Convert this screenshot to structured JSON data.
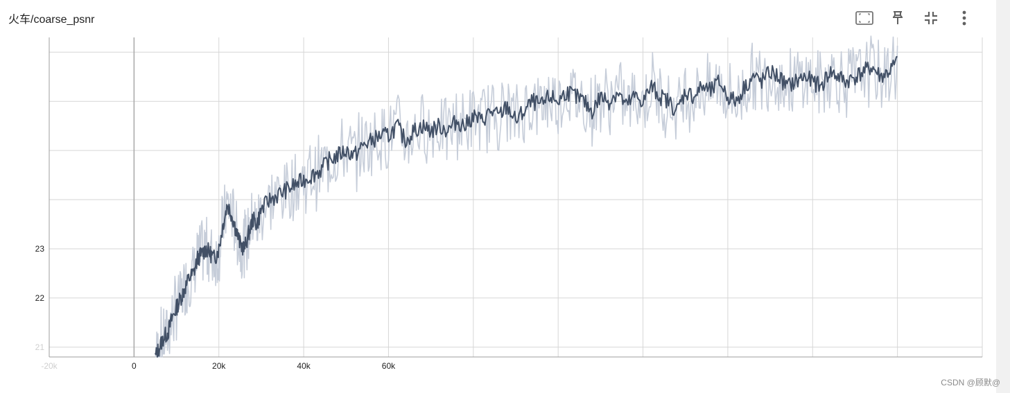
{
  "card": {
    "title": "火车/coarse_psnr"
  },
  "toolbar": [
    {
      "name": "fit-domain-button",
      "icon": "fit-to-screen-icon"
    },
    {
      "name": "pin-button",
      "icon": "pin-icon"
    },
    {
      "name": "collapse-button",
      "icon": "collapse-icon"
    },
    {
      "name": "more-options-button",
      "icon": "more-vert-icon"
    }
  ],
  "watermark": "CSDN @顾默@",
  "colors": {
    "smoothed": "#425066",
    "raw": "#c6cdd9",
    "grid": "#d6d6d6",
    "axis": "#9e9e9e",
    "zero_line": "#a8a8a8"
  },
  "chart_data": {
    "type": "line",
    "title": "火车/coarse_psnr",
    "xlabel": "",
    "ylabel": "",
    "xlim": [
      -20000,
      200000
    ],
    "ylim": [
      20.8,
      27.3
    ],
    "x_ticks": [
      {
        "value": -20000,
        "label": "-20k",
        "faded": true
      },
      {
        "value": 0,
        "label": "0"
      },
      {
        "value": 20000,
        "label": "20k"
      },
      {
        "value": 40000,
        "label": "40k"
      },
      {
        "value": 60000,
        "label": "60k"
      },
      {
        "value": 80000,
        "label": ""
      },
      {
        "value": 100000,
        "label": ""
      },
      {
        "value": 120000,
        "label": ""
      },
      {
        "value": 140000,
        "label": ""
      },
      {
        "value": 160000,
        "label": ""
      },
      {
        "value": 180000,
        "label": ""
      },
      {
        "value": 200000,
        "label": ""
      }
    ],
    "y_ticks": [
      {
        "value": 21,
        "label": "21",
        "faded": true
      },
      {
        "value": 22,
        "label": "22"
      },
      {
        "value": 23,
        "label": "23"
      },
      {
        "value": 24,
        "label": ""
      },
      {
        "value": 25,
        "label": ""
      },
      {
        "value": 26,
        "label": ""
      },
      {
        "value": 27,
        "label": ""
      }
    ],
    "grid": true,
    "series": [
      {
        "role": "smoothed",
        "x": [
          5000,
          6000,
          7000,
          8000,
          9000,
          10000,
          11000,
          12000,
          13000,
          14000,
          15000,
          16000,
          17000,
          18000,
          19000,
          20000,
          21000,
          22000,
          23000,
          24000,
          25000,
          26000,
          27000,
          28000,
          29000,
          30000,
          32000,
          34000,
          36000,
          38000,
          40000,
          42000,
          44000,
          46000,
          48000,
          50000,
          52000,
          54000,
          56000,
          58000,
          60000,
          62000,
          64000,
          66000,
          68000,
          70000,
          72000,
          74000,
          76000,
          78000,
          80000,
          82000,
          84000,
          86000,
          88000,
          90000,
          92000,
          94000,
          96000,
          98000,
          100000,
          102000,
          104000,
          106000,
          108000,
          110000,
          112000,
          114000,
          116000,
          118000,
          120000,
          122000,
          124000,
          126000,
          128000,
          130000,
          132000,
          134000,
          136000,
          138000,
          140000,
          142000,
          144000,
          146000,
          148000,
          150000,
          152000,
          154000,
          156000,
          158000,
          160000,
          162000,
          164000,
          166000,
          168000,
          170000,
          172000,
          174000,
          176000,
          178000,
          180000
        ],
        "y": [
          20.8,
          21.0,
          21.2,
          21.3,
          21.6,
          21.8,
          22.0,
          22.2,
          22.4,
          22.5,
          22.8,
          22.9,
          23.0,
          22.9,
          22.8,
          23.0,
          23.5,
          23.9,
          23.7,
          23.4,
          23.1,
          23.0,
          23.3,
          23.6,
          23.5,
          23.8,
          24.0,
          24.1,
          24.2,
          24.3,
          24.4,
          24.5,
          24.6,
          24.8,
          24.9,
          25.0,
          24.9,
          25.1,
          25.2,
          25.3,
          25.3,
          25.5,
          25.2,
          25.4,
          25.5,
          25.4,
          25.5,
          25.4,
          25.6,
          25.5,
          25.7,
          25.6,
          25.8,
          25.7,
          25.9,
          25.6,
          25.8,
          26.0,
          25.9,
          26.1,
          26.0,
          26.2,
          26.1,
          26.0,
          25.8,
          26.1,
          26.0,
          26.2,
          25.9,
          26.1,
          26.0,
          26.3,
          26.1,
          26.0,
          25.8,
          26.2,
          26.1,
          26.3,
          26.2,
          26.4,
          26.1,
          26.0,
          26.3,
          26.5,
          26.4,
          26.6,
          26.5,
          26.3,
          26.4,
          26.5,
          26.4,
          26.3,
          26.6,
          26.5,
          26.4,
          26.5,
          26.6,
          26.7,
          26.5,
          26.6,
          26.8
        ]
      },
      {
        "role": "raw"
      }
    ]
  }
}
